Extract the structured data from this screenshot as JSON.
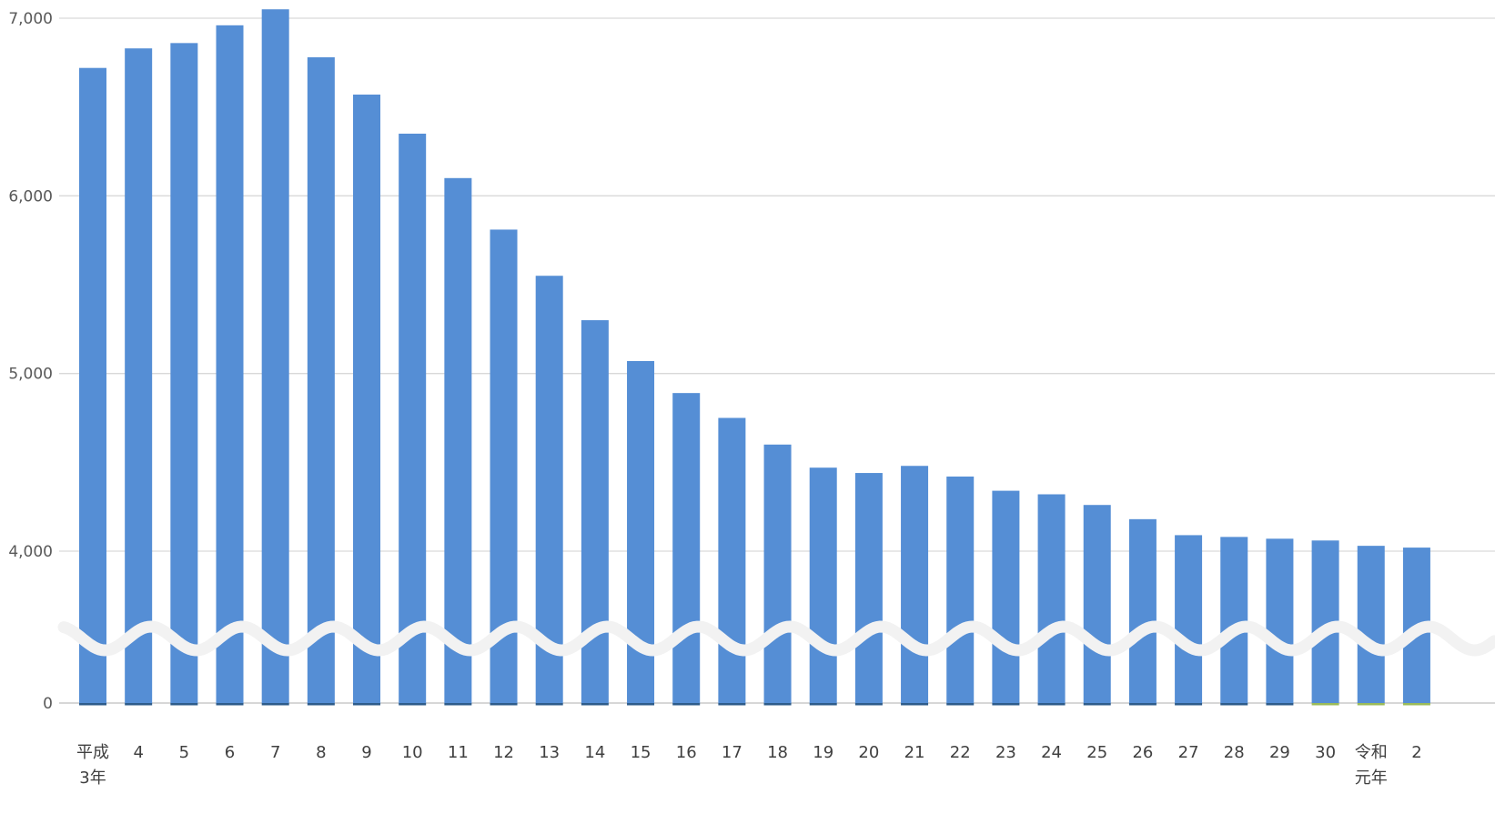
{
  "chart_data": {
    "type": "bar",
    "title": "",
    "xlabel": "",
    "ylabel": "",
    "axis_break": true,
    "grid": true,
    "legend": "none",
    "categories": [
      [
        "平成",
        "3年"
      ],
      [
        "4"
      ],
      [
        "5"
      ],
      [
        "6"
      ],
      [
        "7"
      ],
      [
        "8"
      ],
      [
        "9"
      ],
      [
        "10"
      ],
      [
        "11"
      ],
      [
        "12"
      ],
      [
        "13"
      ],
      [
        "14"
      ],
      [
        "15"
      ],
      [
        "16"
      ],
      [
        "17"
      ],
      [
        "18"
      ],
      [
        "19"
      ],
      [
        "20"
      ],
      [
        "21"
      ],
      [
        "22"
      ],
      [
        "23"
      ],
      [
        "24"
      ],
      [
        "25"
      ],
      [
        "26"
      ],
      [
        "27"
      ],
      [
        "28"
      ],
      [
        "29"
      ],
      [
        "30"
      ],
      [
        "令和",
        "元年"
      ],
      [
        "2"
      ]
    ],
    "values": [
      6720,
      6830,
      6860,
      6960,
      7050,
      6780,
      6570,
      6350,
      6100,
      5810,
      5550,
      5300,
      5070,
      4890,
      4750,
      4600,
      4470,
      4440,
      4480,
      4420,
      4340,
      4320,
      4260,
      4180,
      4090,
      4080,
      4070,
      4060,
      4030,
      4020
    ],
    "y_ticks": [
      {
        "value": 0,
        "label": "0"
      },
      {
        "value": 4000,
        "label": "4,000"
      },
      {
        "value": 5000,
        "label": "5,000"
      },
      {
        "value": 6000,
        "label": "6,000"
      },
      {
        "value": 7000,
        "label": "7,000"
      }
    ],
    "colors": {
      "bar": "#558ED5",
      "gridline": "#D9D9D9",
      "baseline": "#BFBFBF",
      "break_wave": "#F2F2F2",
      "base_segment_green": "#9BBB59",
      "base_segment_default": "#2E5C8A"
    }
  }
}
